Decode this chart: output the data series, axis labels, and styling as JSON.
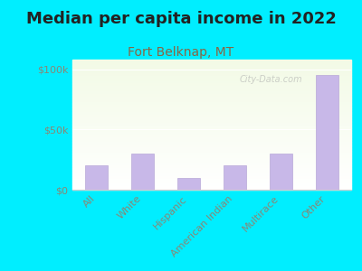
{
  "title": "Median per capita income in 2022",
  "subtitle": "Fort Belknap, MT",
  "categories": [
    "All",
    "White",
    "Hispanic",
    "American Indian",
    "Multirace",
    "Other"
  ],
  "values": [
    20000,
    30000,
    10000,
    20000,
    30000,
    95000
  ],
  "bar_color": "#c8b8e8",
  "bar_edge_color": "#b8a8d8",
  "title_fontsize": 13,
  "subtitle_fontsize": 10,
  "subtitle_color": "#886644",
  "title_color": "#222222",
  "background_outer": "#00eeff",
  "yticks": [
    0,
    50000,
    100000
  ],
  "ytick_labels": [
    "$0",
    "$50k",
    "$100k"
  ],
  "ylim": [
    0,
    108000
  ],
  "watermark": "City-Data.com",
  "tick_color": "#888877",
  "xlabel_fontsize": 8,
  "ylabel_fontsize": 8
}
